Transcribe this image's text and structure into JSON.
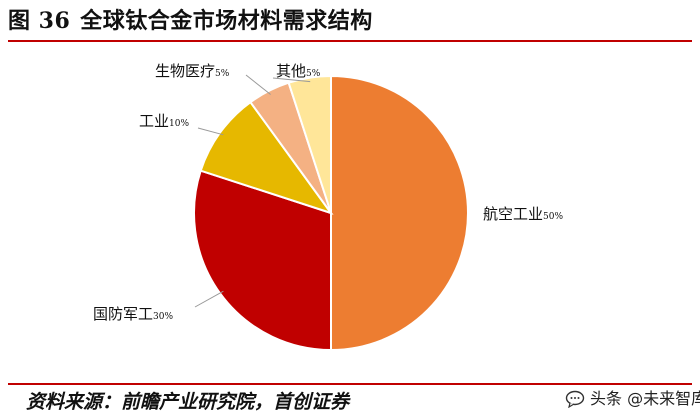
{
  "header": {
    "figure_label": "图 36",
    "title": "全球钛合金市场材料需求结构"
  },
  "source": "资料来源：前瞻产业研究院，首创证券",
  "watermark": {
    "text": "头条 @未来智库",
    "icon": "chat-bubble-icon"
  },
  "chart_data": {
    "type": "pie",
    "title": "全球钛合金市场材料需求结构",
    "start_angle_deg": 0,
    "direction": "clockwise",
    "slices": [
      {
        "name": "航空工业",
        "pct_label": "50%",
        "value": 50,
        "color": "#ed7d31"
      },
      {
        "name": "国防军工",
        "pct_label": "30%",
        "value": 30,
        "color": "#c00000"
      },
      {
        "name": "工业",
        "pct_label": "10%",
        "value": 10,
        "color": "#e6b800"
      },
      {
        "name": "生物医疗",
        "pct_label": "5%",
        "value": 5,
        "color": "#f4b183"
      },
      {
        "name": "其他",
        "pct_label": "5%",
        "value": 5,
        "color": "#ffe699"
      }
    ],
    "legend": "none"
  }
}
